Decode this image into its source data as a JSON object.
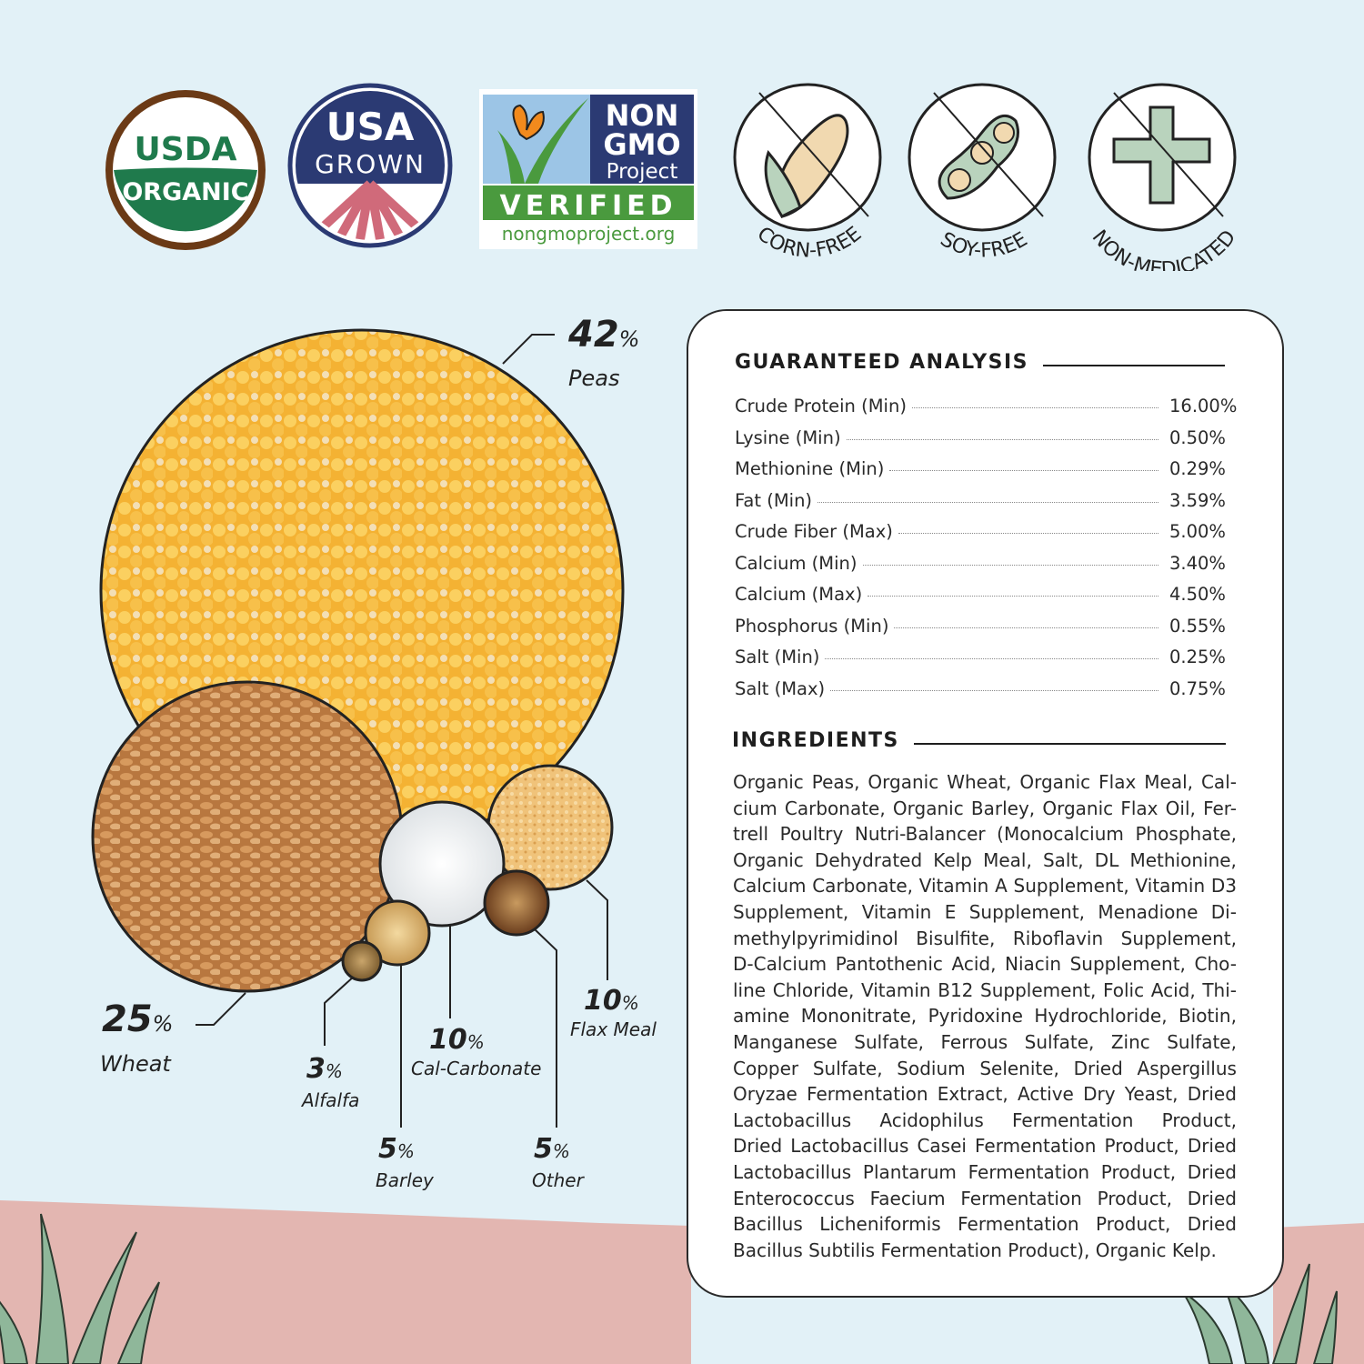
{
  "badges": {
    "usda": {
      "line1": "USDA",
      "line2": "ORGANIC"
    },
    "usa_grown": {
      "line1": "USA",
      "line2": "GROWN"
    },
    "non_gmo": {
      "line1": "NON",
      "line2": "GMO",
      "line3": "Project",
      "verified": "VERIFIED",
      "url": "nongmoproject.org"
    },
    "corn_free": "CORN-FREE",
    "soy_free": "SOY-FREE",
    "non_medicated": "NON-MEDICATED"
  },
  "composition": [
    {
      "name": "Peas",
      "percent": "42",
      "icon": "peas-photo"
    },
    {
      "name": "Wheat",
      "percent": "25",
      "icon": "wheat-photo"
    },
    {
      "name": "Alfalfa",
      "percent": "3",
      "icon": "alfalfa-photo"
    },
    {
      "name": "Barley",
      "percent": "5",
      "icon": "barley-photo"
    },
    {
      "name": "Cal-Carbonate",
      "percent": "10",
      "icon": "calcium-carbonate-photo"
    },
    {
      "name": "Other",
      "percent": "5",
      "icon": "other-photo"
    },
    {
      "name": "Flax Meal",
      "percent": "10",
      "icon": "flax-meal-photo"
    }
  ],
  "percent_sign": "%",
  "analysis": {
    "title": "GUARANTEED ANALYSIS",
    "rows": [
      {
        "label": "Crude Protein (Min)",
        "value": "16.00%"
      },
      {
        "label": "Lysine (Min)",
        "value": "0.50%"
      },
      {
        "label": "Methionine (Min)",
        "value": "0.29%"
      },
      {
        "label": "Fat (Min)",
        "value": "3.59%"
      },
      {
        "label": "Crude Fiber (Max)",
        "value": "5.00%"
      },
      {
        "label": "Calcium (Min)",
        "value": "3.40%"
      },
      {
        "label": "Calcium (Max)",
        "value": "4.50%"
      },
      {
        "label": "Phosphorus (Min)",
        "value": "0.55%"
      },
      {
        "label": "Salt (Min)",
        "value": "0.25%"
      },
      {
        "label": "Salt (Max)",
        "value": "0.75%"
      }
    ]
  },
  "ingredients": {
    "title": "INGREDIENTS",
    "lines": [
      "Organic Peas, Organic Wheat, Organic Flax Meal, Cal-",
      "cium Carbonate, Organic Barley, Organic Flax Oil, Fer-",
      "trell Poultry Nutri-Balancer (Monocalcium Phosphate,",
      "Organic Dehydrated Kelp Meal, Salt, DL Methionine,",
      "Calcium Carbonate, Vitamin A Supplement, Vitamin D3",
      "Supplement, Vitamin E Supplement, Menadione Di-",
      "methylpyrimidinol Bisulfite, Riboflavin Supplement,",
      "D-Calcium Pantothenic Acid, Niacin Supplement, Cho-",
      "line Chloride, Vitamin B12 Supplement, Folic Acid, Thi-",
      "amine Mononitrate, Pyridoxine Hydrochloride, Biotin,",
      "Manganese Sulfate, Ferrous Sulfate, Zinc Sulfate,",
      "Copper Sulfate, Sodium Selenite, Dried Aspergillus",
      "Oryzae Fermentation Extract, Active Dry Yeast, Dried",
      "Lactobacillus Acidophilus Fermentation Product,",
      "Dried Lactobacillus Casei Fermentation Product, Dried",
      "Lactobacillus Plantarum Fermentation Product, Dried",
      "Enterococcus Faecium Fermentation Product, Dried",
      "Bacillus Licheniformis Fermentation Product, Dried",
      "Bacillus Subtilis Fermentation Product), Organic Kelp."
    ]
  },
  "colors": {
    "background": "#e2f1f7",
    "ground": "#e3b6b1",
    "grass": "#7fa98a",
    "usda_green": "#1f7a4c",
    "usda_brown": "#6b3a16",
    "navy": "#2b3a73",
    "nongmo_green": "#4a9a3e",
    "icon_green": "#b9d3bd"
  }
}
